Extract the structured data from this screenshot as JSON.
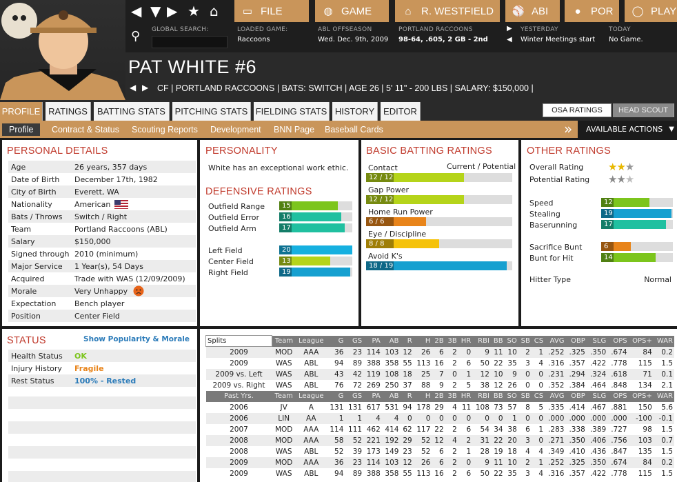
{
  "nav": {
    "buttons": [
      "FILE",
      "GAME",
      "R. WESTFIELD",
      "ABI",
      "POR",
      "PLAY"
    ],
    "search_label": "GLOBAL SEARCH:",
    "search_value": "",
    "loaded_game_label": "LOADED GAME:",
    "loaded_game": "Raccoons",
    "period_label": "ABL OFFSEASON",
    "period_date": "Wed. Dec. 9th, 2009",
    "team_label": "PORTLAND RACCOONS",
    "team_record": "98-64, .605, 2 GB - 2nd",
    "yesterday_label": "YESTERDAY",
    "yesterday_value": "Winter Meetings start",
    "today_label": "TODAY",
    "today_value": "No Game."
  },
  "player": {
    "name": "PAT WHITE  #6",
    "info": "CF | PORTLAND RACCOONS  |  BATS: SWITCH  |  AGE 26  |  5' 11\" - 200 LBS  |  SALARY: $150,000  |"
  },
  "tabs": [
    "PROFILE",
    "RATINGS",
    "BATTING STATS",
    "PITCHING STATS",
    "FIELDING STATS",
    "HISTORY",
    "EDITOR"
  ],
  "toggle": [
    "OSA RATINGS",
    "HEAD SCOUT"
  ],
  "subtabs": [
    "Profile",
    "Contract & Status",
    "Scouting Reports",
    "Development",
    "BNN Page",
    "Baseball Cards"
  ],
  "actions_label": "AVAILABLE ACTIONS",
  "personal": {
    "title": "PERSONAL DETAILS",
    "rows": [
      {
        "k": "Age",
        "v": "26 years, 357 days"
      },
      {
        "k": "Date of Birth",
        "v": "December 17th, 1982"
      },
      {
        "k": "City of Birth",
        "v": "Everett, WA"
      },
      {
        "k": "Nationality",
        "v": "American"
      },
      {
        "k": "Bats / Throws",
        "v": "Switch / Right"
      },
      {
        "k": "Team",
        "v": "Portland Raccoons (ABL)"
      },
      {
        "k": "Salary",
        "v": "$150,000"
      },
      {
        "k": "Signed through",
        "v": "2010 (minimum)"
      },
      {
        "k": "Major Service",
        "v": "1 Year(s), 54 Days"
      },
      {
        "k": "Acquired",
        "v": "Trade with WAS (12/09/2009)"
      },
      {
        "k": "Morale",
        "v": "Very Unhappy"
      },
      {
        "k": "Expectation",
        "v": "Bench player"
      },
      {
        "k": "Position",
        "v": "Center Field"
      }
    ]
  },
  "personality": {
    "title": "PERSONALITY",
    "text": "White has an exceptional work ethic."
  },
  "defensive": {
    "title": "DEFENSIVE RATINGS",
    "rows": [
      {
        "k": "Outfield Range",
        "v": "15",
        "pct": 0.8,
        "color": "#7cc51c"
      },
      {
        "k": "Outfield Error",
        "v": "16",
        "pct": 0.85,
        "color": "#20c0a0"
      },
      {
        "k": "Outfield Arm",
        "v": "17",
        "pct": 0.9,
        "color": "#20c0a0"
      },
      {
        "k": "Left Field",
        "v": "20",
        "pct": 1.0,
        "color": "#16b0e0"
      },
      {
        "k": "Center Field",
        "v": "13",
        "pct": 0.7,
        "color": "#b5d41a"
      },
      {
        "k": "Right Field",
        "v": "19",
        "pct": 0.97,
        "color": "#16a0d0"
      }
    ]
  },
  "batting": {
    "title": "BASIC BATTING RATINGS",
    "header": "Current / Potential",
    "rows": [
      {
        "k": "Contact",
        "v": "12 / 12",
        "pct": 0.67,
        "color": "#b5d41a"
      },
      {
        "k": "Gap Power",
        "v": "12 / 12",
        "pct": 0.67,
        "color": "#b5d41a"
      },
      {
        "k": "Home Run Power",
        "v": "6 / 6",
        "pct": 0.41,
        "color": "#e8841a"
      },
      {
        "k": "Eye / Discipline",
        "v": "8 / 8",
        "pct": 0.5,
        "color": "#f5c20a"
      },
      {
        "k": "Avoid K's",
        "v": "18 / 19",
        "pct": 0.96,
        "color": "#16a0d0"
      }
    ]
  },
  "other": {
    "title": "OTHER RATINGS",
    "overall_label": "Overall Rating",
    "overall_stars": 2.5,
    "potential_label": "Potential Rating",
    "potential_stars": 2.5,
    "rows": [
      {
        "k": "Speed",
        "v": "12",
        "pct": 0.67,
        "color": "#7cc51c"
      },
      {
        "k": "Stealing",
        "v": "19",
        "pct": 0.98,
        "color": "#16a0d0"
      },
      {
        "k": "Baserunning",
        "v": "17",
        "pct": 0.9,
        "color": "#20c0a0"
      },
      {
        "k": "Sacrifice Bunt",
        "v": "6",
        "pct": 0.41,
        "color": "#e8841a"
      },
      {
        "k": "Bunt for Hit",
        "v": "14",
        "pct": 0.76,
        "color": "#7cc51c"
      }
    ],
    "hitter_type_label": "Hitter Type",
    "hitter_type": "Normal"
  },
  "status": {
    "title": "STATUS",
    "link": "Show Popularity & Morale",
    "rows": [
      {
        "k": "Health Status",
        "v": "OK",
        "color": "#7cc51c"
      },
      {
        "k": "Injury History",
        "v": "Fragile",
        "color": "#e8841a"
      },
      {
        "k": "Rest Status",
        "v": "100% - Rested",
        "color": "#2b7bb9"
      }
    ]
  },
  "stats": {
    "splits_label": "Splits",
    "columns": [
      "Team",
      "League",
      "G",
      "GS",
      "PA",
      "AB",
      "R",
      "H",
      "2B",
      "3B",
      "HR",
      "RBI",
      "BB",
      "SO",
      "SB",
      "CS",
      "AVG",
      "OBP",
      "SLG",
      "OPS",
      "OPS+",
      "WAR"
    ],
    "split_rows": [
      [
        "2009",
        "MOD",
        "AAA",
        "36",
        "23",
        "114",
        "103",
        "12",
        "26",
        "6",
        "2",
        "0",
        "9",
        "11",
        "10",
        "2",
        "1",
        ".252",
        ".325",
        ".350",
        ".674",
        "84",
        "0.2"
      ],
      [
        "2009",
        "WAS",
        "ABL",
        "94",
        "89",
        "388",
        "358",
        "55",
        "113",
        "16",
        "2",
        "6",
        "50",
        "22",
        "35",
        "3",
        "4",
        ".316",
        ".357",
        ".422",
        ".778",
        "115",
        "1.5"
      ],
      [
        "2009 vs. Left",
        "WAS",
        "ABL",
        "43",
        "42",
        "119",
        "108",
        "18",
        "25",
        "7",
        "0",
        "1",
        "12",
        "10",
        "9",
        "0",
        "0",
        ".231",
        ".294",
        ".324",
        ".618",
        "71",
        "0.1"
      ],
      [
        "2009 vs. Right",
        "WAS",
        "ABL",
        "76",
        "72",
        "269",
        "250",
        "37",
        "88",
        "9",
        "2",
        "5",
        "38",
        "12",
        "26",
        "0",
        "0",
        ".352",
        ".384",
        ".464",
        ".848",
        "134",
        "2.1"
      ]
    ],
    "past_label": "Past Yrs.",
    "past_rows": [
      [
        "2006",
        "JV",
        "A",
        "131",
        "131",
        "617",
        "531",
        "94",
        "178",
        "29",
        "4",
        "11",
        "108",
        "73",
        "57",
        "8",
        "5",
        ".335",
        ".414",
        ".467",
        ".881",
        "150",
        "5.6"
      ],
      [
        "2006",
        "LIN",
        "AA",
        "1",
        "1",
        "4",
        "4",
        "0",
        "0",
        "0",
        "0",
        "0",
        "0",
        "0",
        "1",
        "0",
        "0",
        ".000",
        ".000",
        ".000",
        ".000",
        "-100",
        "-0.1"
      ],
      [
        "2007",
        "MOD",
        "AAA",
        "114",
        "111",
        "462",
        "414",
        "62",
        "117",
        "22",
        "2",
        "6",
        "54",
        "34",
        "38",
        "6",
        "1",
        ".283",
        ".338",
        ".389",
        ".727",
        "98",
        "1.5"
      ],
      [
        "2008",
        "MOD",
        "AAA",
        "58",
        "52",
        "221",
        "192",
        "29",
        "52",
        "12",
        "4",
        "2",
        "31",
        "22",
        "20",
        "3",
        "0",
        ".271",
        ".350",
        ".406",
        ".756",
        "103",
        "0.7"
      ],
      [
        "2008",
        "WAS",
        "ABL",
        "52",
        "39",
        "173",
        "149",
        "23",
        "52",
        "6",
        "2",
        "1",
        "28",
        "19",
        "18",
        "4",
        "4",
        ".349",
        ".410",
        ".436",
        ".847",
        "135",
        "1.5"
      ],
      [
        "2009",
        "MOD",
        "AAA",
        "36",
        "23",
        "114",
        "103",
        "12",
        "26",
        "6",
        "2",
        "0",
        "9",
        "11",
        "10",
        "2",
        "1",
        ".252",
        ".325",
        ".350",
        ".674",
        "84",
        "0.2"
      ],
      [
        "2009",
        "WAS",
        "ABL",
        "94",
        "89",
        "388",
        "358",
        "55",
        "113",
        "16",
        "2",
        "6",
        "50",
        "22",
        "35",
        "3",
        "4",
        ".316",
        ".357",
        ".422",
        ".778",
        "115",
        "1.5"
      ]
    ]
  }
}
